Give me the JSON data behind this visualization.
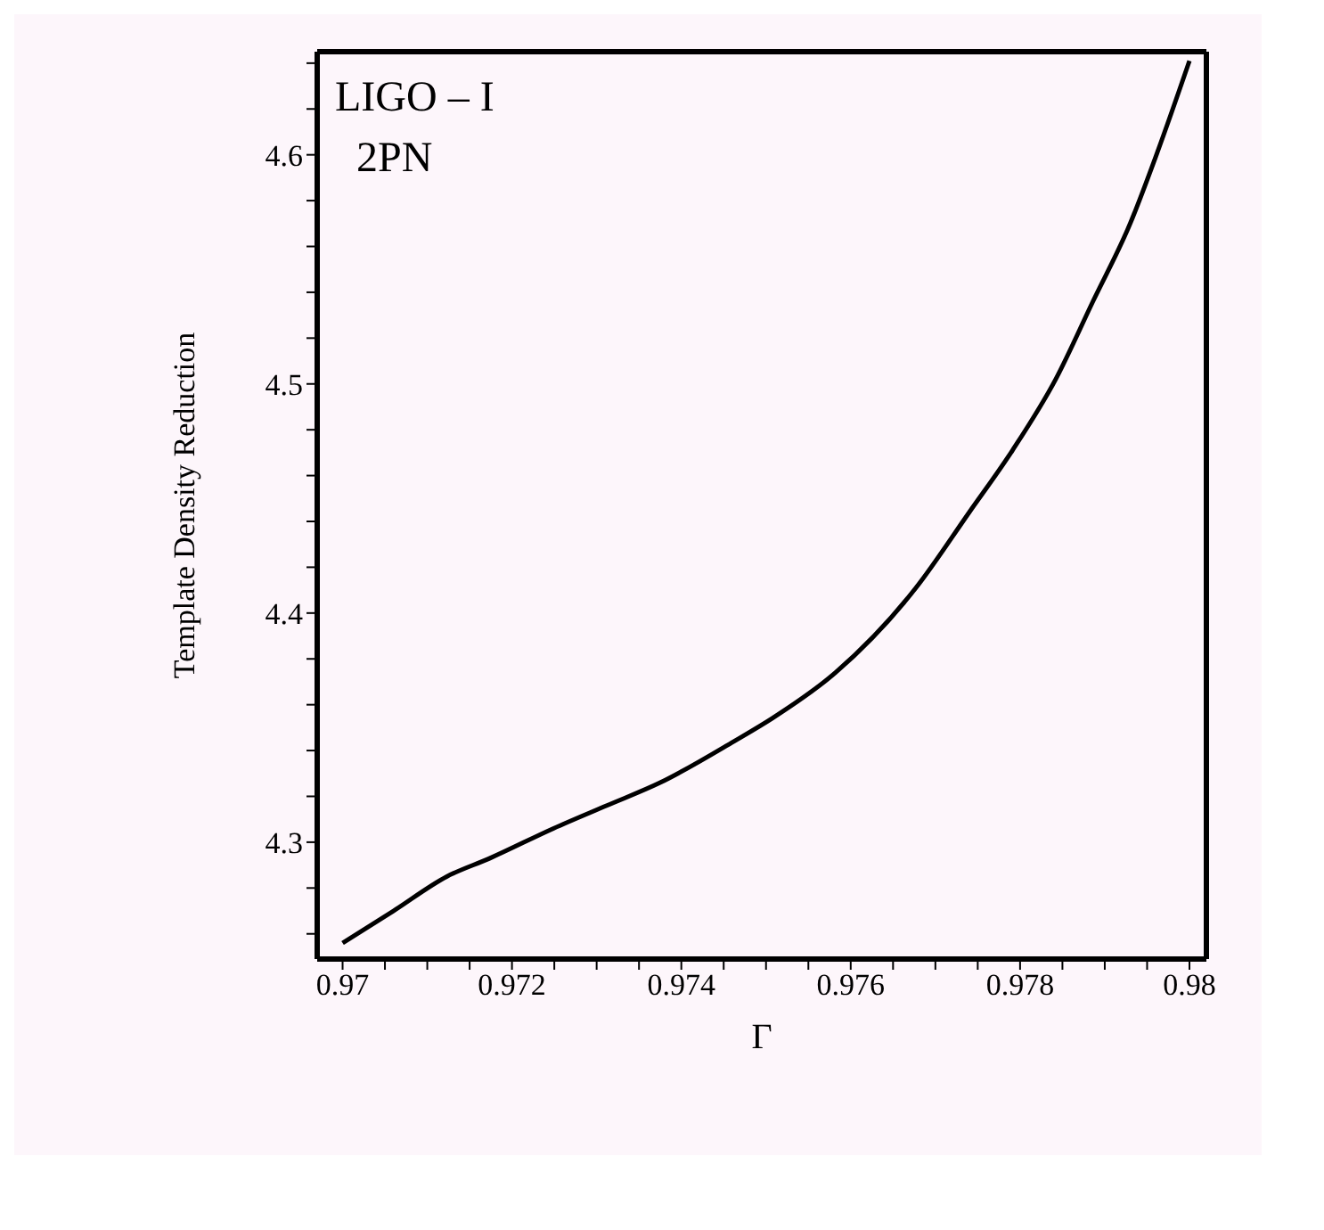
{
  "chart_data": {
    "type": "line",
    "xlabel": "Γ",
    "ylabel": "Template Density Reduction",
    "annotations": [
      "LIGO – I",
      "2PN"
    ],
    "x": [
      0.97,
      0.9706,
      0.97123,
      0.97174,
      0.97249,
      0.97312,
      0.97375,
      0.97462,
      0.97507,
      0.97582,
      0.97677,
      0.9774,
      0.97791,
      0.97842,
      0.97886,
      0.9793,
      0.97962,
      0.98
    ],
    "series": [
      {
        "color": "#000000",
        "values": [
          4.256,
          4.27,
          4.285,
          4.293,
          4.306,
          4.316,
          4.326,
          4.344,
          4.354,
          4.374,
          4.411,
          4.444,
          4.471,
          4.502,
          4.536,
          4.57,
          4.601,
          4.641
        ]
      }
    ],
    "xlim": [
      0.9697,
      0.9802
    ],
    "ylim": [
      4.249,
      4.645
    ],
    "xticks": [
      0.97,
      {
        "value": 0.9705,
        "label": null
      },
      {
        "value": 0.971,
        "label": null
      },
      {
        "value": 0.9715,
        "label": null
      },
      0.972,
      {
        "value": 0.9725,
        "label": null
      },
      {
        "value": 0.973,
        "label": null
      },
      {
        "value": 0.9735,
        "label": null
      },
      0.974,
      {
        "value": 0.9745,
        "label": null
      },
      {
        "value": 0.975,
        "label": null
      },
      {
        "value": 0.9755,
        "label": null
      },
      0.976,
      {
        "value": 0.9765,
        "label": null
      },
      {
        "value": 0.977,
        "label": null
      },
      {
        "value": 0.9775,
        "label": null
      },
      0.978,
      {
        "value": 0.9785,
        "label": null
      },
      {
        "value": 0.979,
        "label": null
      },
      {
        "value": 0.9795,
        "label": null
      },
      0.98
    ],
    "yticks": [
      {
        "value": 4.26,
        "label": null
      },
      {
        "value": 4.28,
        "label": null
      },
      4.3,
      {
        "value": 4.32,
        "label": null
      },
      {
        "value": 4.34,
        "label": null
      },
      {
        "value": 4.36,
        "label": null
      },
      {
        "value": 4.38,
        "label": null
      },
      4.4,
      {
        "value": 4.42,
        "label": null
      },
      {
        "value": 4.44,
        "label": null
      },
      {
        "value": 4.46,
        "label": null
      },
      {
        "value": 4.48,
        "label": null
      },
      4.5,
      {
        "value": 4.52,
        "label": null
      },
      {
        "value": 4.54,
        "label": null
      },
      {
        "value": 4.56,
        "label": null
      },
      {
        "value": 4.58,
        "label": null
      },
      4.6,
      {
        "value": 4.62,
        "label": null
      },
      {
        "value": 4.64,
        "label": null
      }
    ],
    "grid": false,
    "legend": false,
    "marker": "none",
    "line_style": "solid"
  }
}
